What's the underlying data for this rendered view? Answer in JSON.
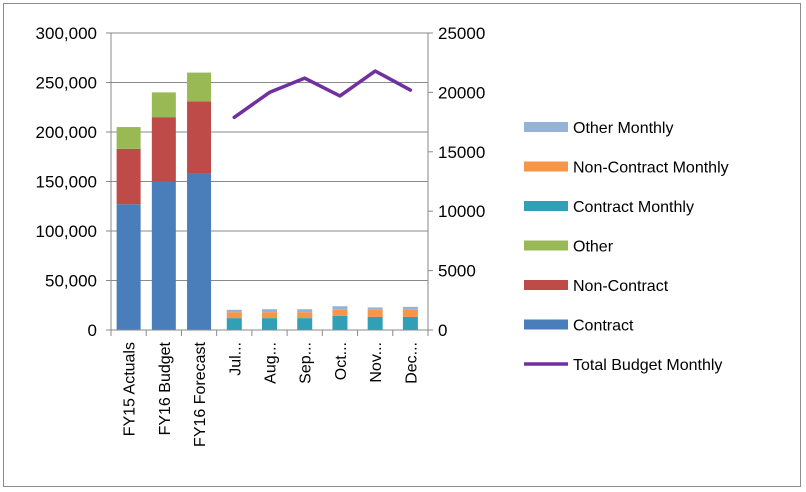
{
  "chart_data": {
    "type": "bar",
    "stacked": true,
    "categories": [
      "FY15 Actuals",
      "FY16 Budget",
      "FY16 Forecast",
      "Jul...",
      "Aug...",
      "Sep...",
      "Oct...",
      "Nov...",
      "Dec..."
    ],
    "y_left": {
      "range": [
        0,
        300000
      ],
      "ticks": [
        "0",
        "50,000",
        "100,000",
        "150,000",
        "200,000",
        "250,000",
        "300,000"
      ],
      "tick_values": [
        0,
        50000,
        100000,
        150000,
        200000,
        250000,
        300000
      ]
    },
    "y_right": {
      "range": [
        0,
        25000
      ],
      "ticks": [
        "0",
        "5000",
        "10000",
        "15000",
        "20000",
        "25000"
      ],
      "tick_values": [
        0,
        5000,
        10000,
        15000,
        20000,
        25000
      ]
    },
    "gridlines": true,
    "legend_position": "right",
    "series": [
      {
        "name": "Contract",
        "axis": "left",
        "type": "bar",
        "color": "#4a7ebb",
        "values": [
          127000,
          150000,
          158000,
          null,
          null,
          null,
          null,
          null,
          null
        ]
      },
      {
        "name": "Non-Contract",
        "axis": "left",
        "type": "bar",
        "color": "#be4b48",
        "values": [
          56000,
          65000,
          73000,
          null,
          null,
          null,
          null,
          null,
          null
        ]
      },
      {
        "name": "Other",
        "axis": "left",
        "type": "bar",
        "color": "#98b954",
        "values": [
          22000,
          25000,
          29000,
          null,
          null,
          null,
          null,
          null,
          null
        ]
      },
      {
        "name": "Contract Monthly",
        "axis": "right",
        "type": "bar",
        "color": "#31a0b7",
        "values": [
          null,
          null,
          null,
          1000,
          1000,
          1000,
          1200,
          1100,
          1100
        ]
      },
      {
        "name": "Non-Contract Monthly",
        "axis": "right",
        "type": "bar",
        "color": "#f79646",
        "values": [
          null,
          null,
          null,
          500,
          500,
          500,
          500,
          600,
          600
        ]
      },
      {
        "name": "Other Monthly",
        "axis": "right",
        "type": "bar",
        "color": "#95b3d7",
        "values": [
          null,
          null,
          null,
          200,
          250,
          250,
          300,
          200,
          250
        ]
      },
      {
        "name": "Total Budget Monthly",
        "axis": "right",
        "type": "line",
        "color": "#7030a0",
        "values": [
          null,
          null,
          null,
          17900,
          20000,
          21200,
          19700,
          21800,
          20200
        ]
      }
    ],
    "legend": [
      "Other Monthly",
      "Non-Contract Monthly",
      "Contract Monthly",
      "Other",
      "Non-Contract",
      "Contract",
      "Total Budget Monthly"
    ]
  }
}
